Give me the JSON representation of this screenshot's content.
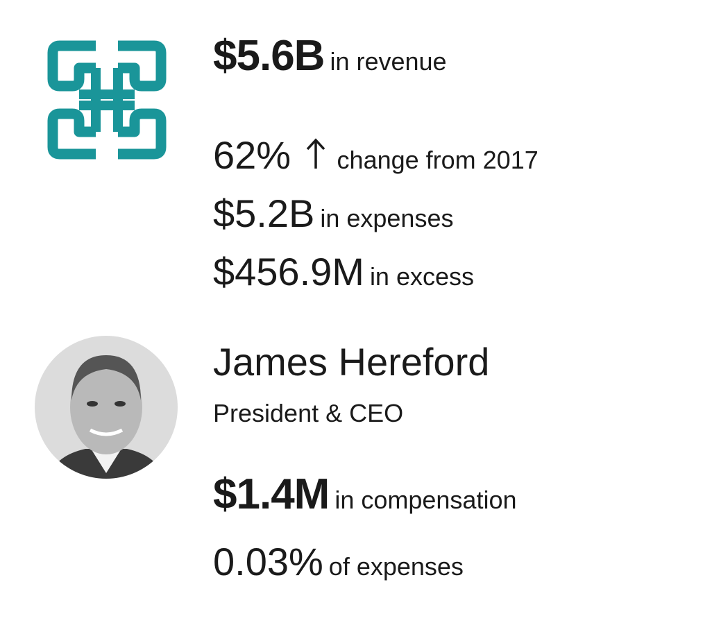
{
  "revenue": {
    "amount": "$5.6B",
    "label": "in revenue"
  },
  "change": {
    "amount": "62%",
    "label": "change from 2017"
  },
  "expenses": {
    "amount": "$5.2B",
    "label": "in expenses"
  },
  "excess": {
    "amount": "$456.9M",
    "label": "in excess"
  },
  "person": {
    "name": "James Hereford",
    "title": "President & CEO"
  },
  "compensation": {
    "amount": "$1.4M",
    "label": "in compensation"
  },
  "share": {
    "amount": "0.03%",
    "label": "of expenses"
  }
}
